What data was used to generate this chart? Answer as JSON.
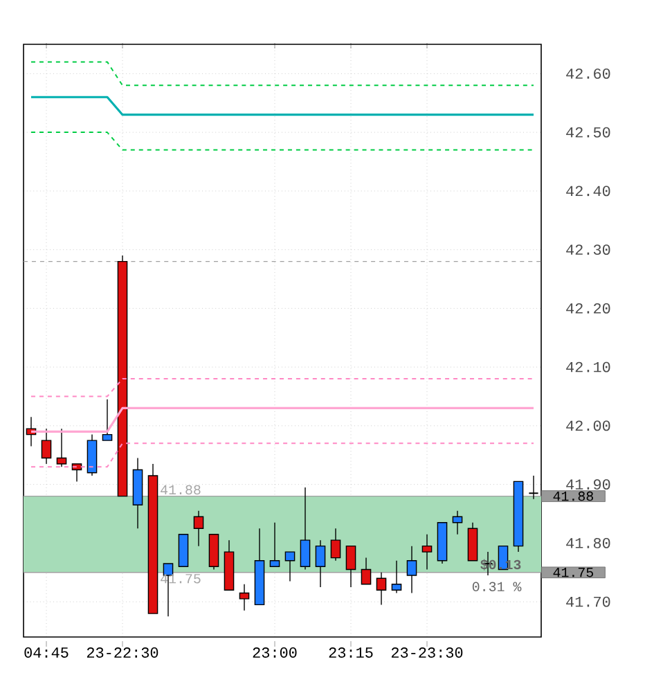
{
  "chart_data": {
    "type": "candlestick",
    "categories": [
      null,
      "04:45",
      null,
      null,
      null,
      null,
      "23-22:30",
      null,
      null,
      null,
      null,
      null,
      null,
      null,
      null,
      null,
      "23:00",
      null,
      null,
      null,
      null,
      "23:15",
      null,
      null,
      null,
      null,
      "23-23:30",
      null,
      null,
      null,
      null,
      null,
      null,
      null
    ],
    "ohlc": [
      [
        41.995,
        42.015,
        41.965,
        41.985
      ],
      [
        41.975,
        41.995,
        41.935,
        41.945
      ],
      [
        41.945,
        41.995,
        41.93,
        41.935
      ],
      [
        41.935,
        41.935,
        41.905,
        41.925
      ],
      [
        41.92,
        41.985,
        41.915,
        41.975
      ],
      [
        41.975,
        42.045,
        41.975,
        41.985
      ],
      [
        42.28,
        42.29,
        41.88,
        41.88
      ],
      [
        41.865,
        41.945,
        41.825,
        41.925
      ],
      [
        41.915,
        41.935,
        41.68,
        41.68
      ],
      [
        41.745,
        41.765,
        41.675,
        41.765
      ],
      [
        41.76,
        41.815,
        41.76,
        41.815
      ],
      [
        41.845,
        41.855,
        41.795,
        41.825
      ],
      [
        41.815,
        41.815,
        41.755,
        41.76
      ],
      [
        41.785,
        41.805,
        41.72,
        41.72
      ],
      [
        41.715,
        41.73,
        41.685,
        41.705
      ],
      [
        41.695,
        41.825,
        41.695,
        41.77
      ],
      [
        41.76,
        41.835,
        41.76,
        41.77
      ],
      [
        41.77,
        41.785,
        41.735,
        41.785
      ],
      [
        41.76,
        41.895,
        41.755,
        41.805
      ],
      [
        41.76,
        41.805,
        41.725,
        41.795
      ],
      [
        41.805,
        41.825,
        41.77,
        41.775
      ],
      [
        41.795,
        41.795,
        41.725,
        41.755
      ],
      [
        41.755,
        41.775,
        41.73,
        41.73
      ],
      [
        41.74,
        41.75,
        41.695,
        41.72
      ],
      [
        41.72,
        41.77,
        41.715,
        41.73
      ],
      [
        41.745,
        41.795,
        41.715,
        41.77
      ],
      [
        41.795,
        41.815,
        41.755,
        41.785
      ],
      [
        41.77,
        41.835,
        41.765,
        41.835
      ],
      [
        41.835,
        41.855,
        41.815,
        41.845
      ],
      [
        41.825,
        41.835,
        41.77,
        41.77
      ],
      [
        41.765,
        41.785,
        41.745,
        41.765
      ],
      [
        41.755,
        41.795,
        41.755,
        41.795
      ],
      [
        41.795,
        41.905,
        41.785,
        41.905
      ],
      [
        41.885,
        41.915,
        41.875,
        41.885
      ]
    ],
    "colors": [
      "#e01010",
      "#e01010",
      "#e01010",
      "#e01010",
      "#1e7bff",
      "#1e7bff",
      "#e01010",
      "#1e7bff",
      "#e01010",
      "#1e7bff",
      "#1e7bff",
      "#e01010",
      "#e01010",
      "#e01010",
      "#e01010",
      "#1e7bff",
      "#1e7bff",
      "#1e7bff",
      "#1e7bff",
      "#1e7bff",
      "#e01010",
      "#e01010",
      "#e01010",
      "#e01010",
      "#1e7bff",
      "#1e7bff",
      "#e01010",
      "#1e7bff",
      "#1e7bff",
      "#e01010",
      "#000000",
      "#1e7bff",
      "#1e7bff",
      "#000000"
    ],
    "series": [
      {
        "type": "line",
        "color": "#00cc44",
        "line_style": "dashed",
        "values": [
          42.62,
          42.62,
          42.62,
          42.62,
          42.62,
          42.62,
          42.58,
          42.58,
          42.58,
          42.58,
          42.58,
          42.58,
          42.58,
          42.58,
          42.58,
          42.58,
          42.58,
          42.58,
          42.58,
          42.58,
          42.58,
          42.58,
          42.58,
          42.58,
          42.58,
          42.58,
          42.58,
          42.58,
          42.58,
          42.58,
          42.58,
          42.58,
          42.58,
          42.58
        ]
      },
      {
        "type": "line",
        "color": "#00b0b0",
        "line_style": "solid",
        "values": [
          42.56,
          42.56,
          42.56,
          42.56,
          42.56,
          42.56,
          42.53,
          42.53,
          42.53,
          42.53,
          42.53,
          42.53,
          42.53,
          42.53,
          42.53,
          42.53,
          42.53,
          42.53,
          42.53,
          42.53,
          42.53,
          42.53,
          42.53,
          42.53,
          42.53,
          42.53,
          42.53,
          42.53,
          42.53,
          42.53,
          42.53,
          42.53,
          42.53,
          42.53
        ]
      },
      {
        "type": "line",
        "color": "#00cc44",
        "line_style": "dashed",
        "values": [
          42.5,
          42.5,
          42.5,
          42.5,
          42.5,
          42.5,
          42.47,
          42.47,
          42.47,
          42.47,
          42.47,
          42.47,
          42.47,
          42.47,
          42.47,
          42.47,
          42.47,
          42.47,
          42.47,
          42.47,
          42.47,
          42.47,
          42.47,
          42.47,
          42.47,
          42.47,
          42.47,
          42.47,
          42.47,
          42.47,
          42.47,
          42.47,
          42.47,
          42.47
        ]
      },
      {
        "type": "line",
        "color": "#ff88c4",
        "line_style": "dashed",
        "values": [
          42.05,
          42.05,
          42.05,
          42.05,
          42.05,
          42.05,
          42.08,
          42.08,
          42.08,
          42.08,
          42.08,
          42.08,
          42.08,
          42.08,
          42.08,
          42.08,
          42.08,
          42.08,
          42.08,
          42.08,
          42.08,
          42.08,
          42.08,
          42.08,
          42.08,
          42.08,
          42.08,
          42.08,
          42.08,
          42.08,
          42.08,
          42.08,
          42.08,
          42.08
        ]
      },
      {
        "type": "line",
        "color": "#ffa6d2",
        "line_style": "solid",
        "values": [
          41.99,
          41.99,
          41.99,
          41.99,
          41.99,
          41.99,
          42.03,
          42.03,
          42.03,
          42.03,
          42.03,
          42.03,
          42.03,
          42.03,
          42.03,
          42.03,
          42.03,
          42.03,
          42.03,
          42.03,
          42.03,
          42.03,
          42.03,
          42.03,
          42.03,
          42.03,
          42.03,
          42.03,
          42.03,
          42.03,
          42.03,
          42.03,
          42.03,
          42.03
        ]
      },
      {
        "type": "line",
        "color": "#ff88c4",
        "line_style": "dashed",
        "values": [
          41.93,
          41.93,
          41.93,
          41.93,
          41.93,
          41.93,
          41.97,
          41.97,
          41.97,
          41.97,
          41.97,
          41.97,
          41.97,
          41.97,
          41.97,
          41.97,
          41.97,
          41.97,
          41.97,
          41.97,
          41.97,
          41.97,
          41.97,
          41.97,
          41.97,
          41.97,
          41.97,
          41.97,
          41.97,
          41.97,
          41.97,
          41.97,
          41.97,
          41.97
        ]
      }
    ],
    "ylim": [
      41.64,
      42.65
    ],
    "yticks": [
      {
        "value": 41.7,
        "label": "41.70"
      },
      {
        "value": 41.8,
        "label": "41.80"
      },
      {
        "value": 41.9,
        "label": "41.90"
      },
      {
        "value": 42.0,
        "label": "42.00"
      },
      {
        "value": 42.1,
        "label": "42.10"
      },
      {
        "value": 42.2,
        "label": "42.20"
      },
      {
        "value": 42.3,
        "label": "42.30"
      },
      {
        "value": 42.4,
        "label": "42.40"
      },
      {
        "value": 42.5,
        "label": "42.50"
      },
      {
        "value": 42.6,
        "label": "42.60"
      }
    ],
    "grid": true,
    "ref_lines": [
      {
        "axis": "y",
        "value": 42.28,
        "color": "#a0a0a0",
        "line_style": "dashed"
      },
      {
        "axis": "y",
        "value": 41.88,
        "label": "41.88",
        "color": "#a0a0a0",
        "line_style": "solid"
      },
      {
        "axis": "y",
        "value": 41.75,
        "label": "41.75",
        "color": "#a0a0a0",
        "line_style": "solid"
      }
    ],
    "bands": [
      {
        "axis": "y",
        "from": 41.75,
        "to": 41.88,
        "color": "#a6dcb8"
      }
    ],
    "annotations": [
      {
        "text": "41.88",
        "y": 41.88
      },
      {
        "text": "41.75",
        "y": 41.75
      },
      "$0.13",
      "0.31 %"
    ]
  }
}
